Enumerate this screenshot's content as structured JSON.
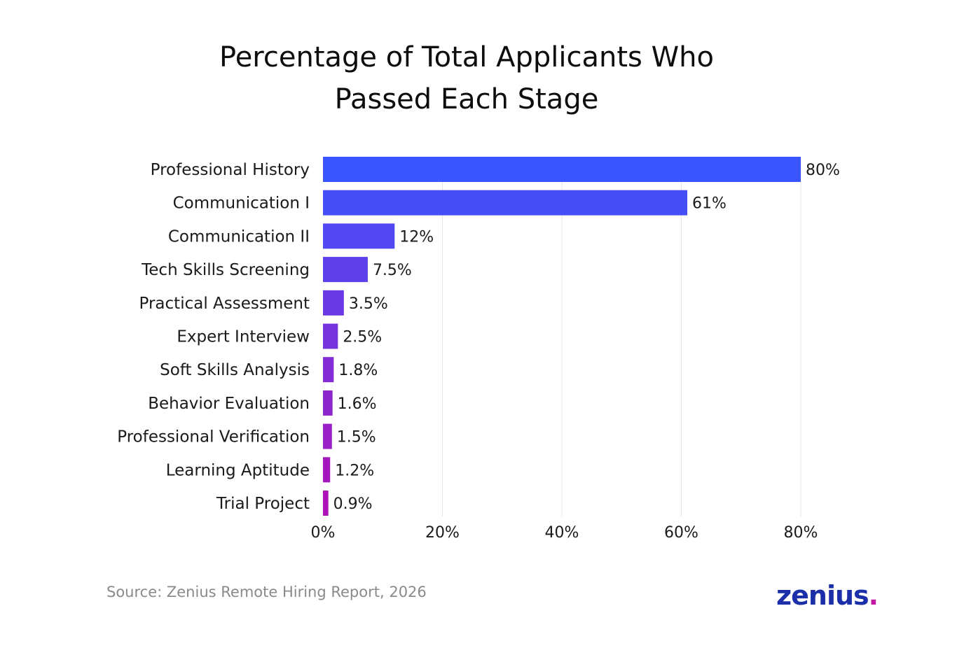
{
  "chart_data": {
    "type": "bar",
    "orientation": "horizontal",
    "title_lines": [
      "Percentage of Total Applicants Who",
      "Passed Each Stage"
    ],
    "categories": [
      "Professional History",
      "Communication I",
      "Communication II",
      "Tech Skills Screening",
      "Practical Assessment",
      "Expert Interview",
      "Soft Skills Analysis",
      "Behavior Evaluation",
      "Professional Verification",
      "Learning Aptitude",
      "Trial Project"
    ],
    "values": [
      80,
      61,
      12,
      7.5,
      3.5,
      2.5,
      1.8,
      1.6,
      1.5,
      1.2,
      0.9
    ],
    "value_labels": [
      "80%",
      "61%",
      "12%",
      "7.5%",
      "3.5%",
      "2.5%",
      "1.8%",
      "1.6%",
      "1.5%",
      "1.2%",
      "0.9%"
    ],
    "xlim": [
      0,
      80
    ],
    "xticks": [
      0,
      20,
      40,
      60,
      80
    ],
    "xtick_labels": [
      "0%",
      "20%",
      "40%",
      "60%",
      "80%"
    ],
    "grid": "vertical",
    "bar_color_gradient": [
      "#3a55ff",
      "#b010b8"
    ]
  },
  "footer": {
    "source": "Source: Zenius Remote Hiring Report, 2026",
    "logo_text": "zenius",
    "logo_dot": "."
  }
}
